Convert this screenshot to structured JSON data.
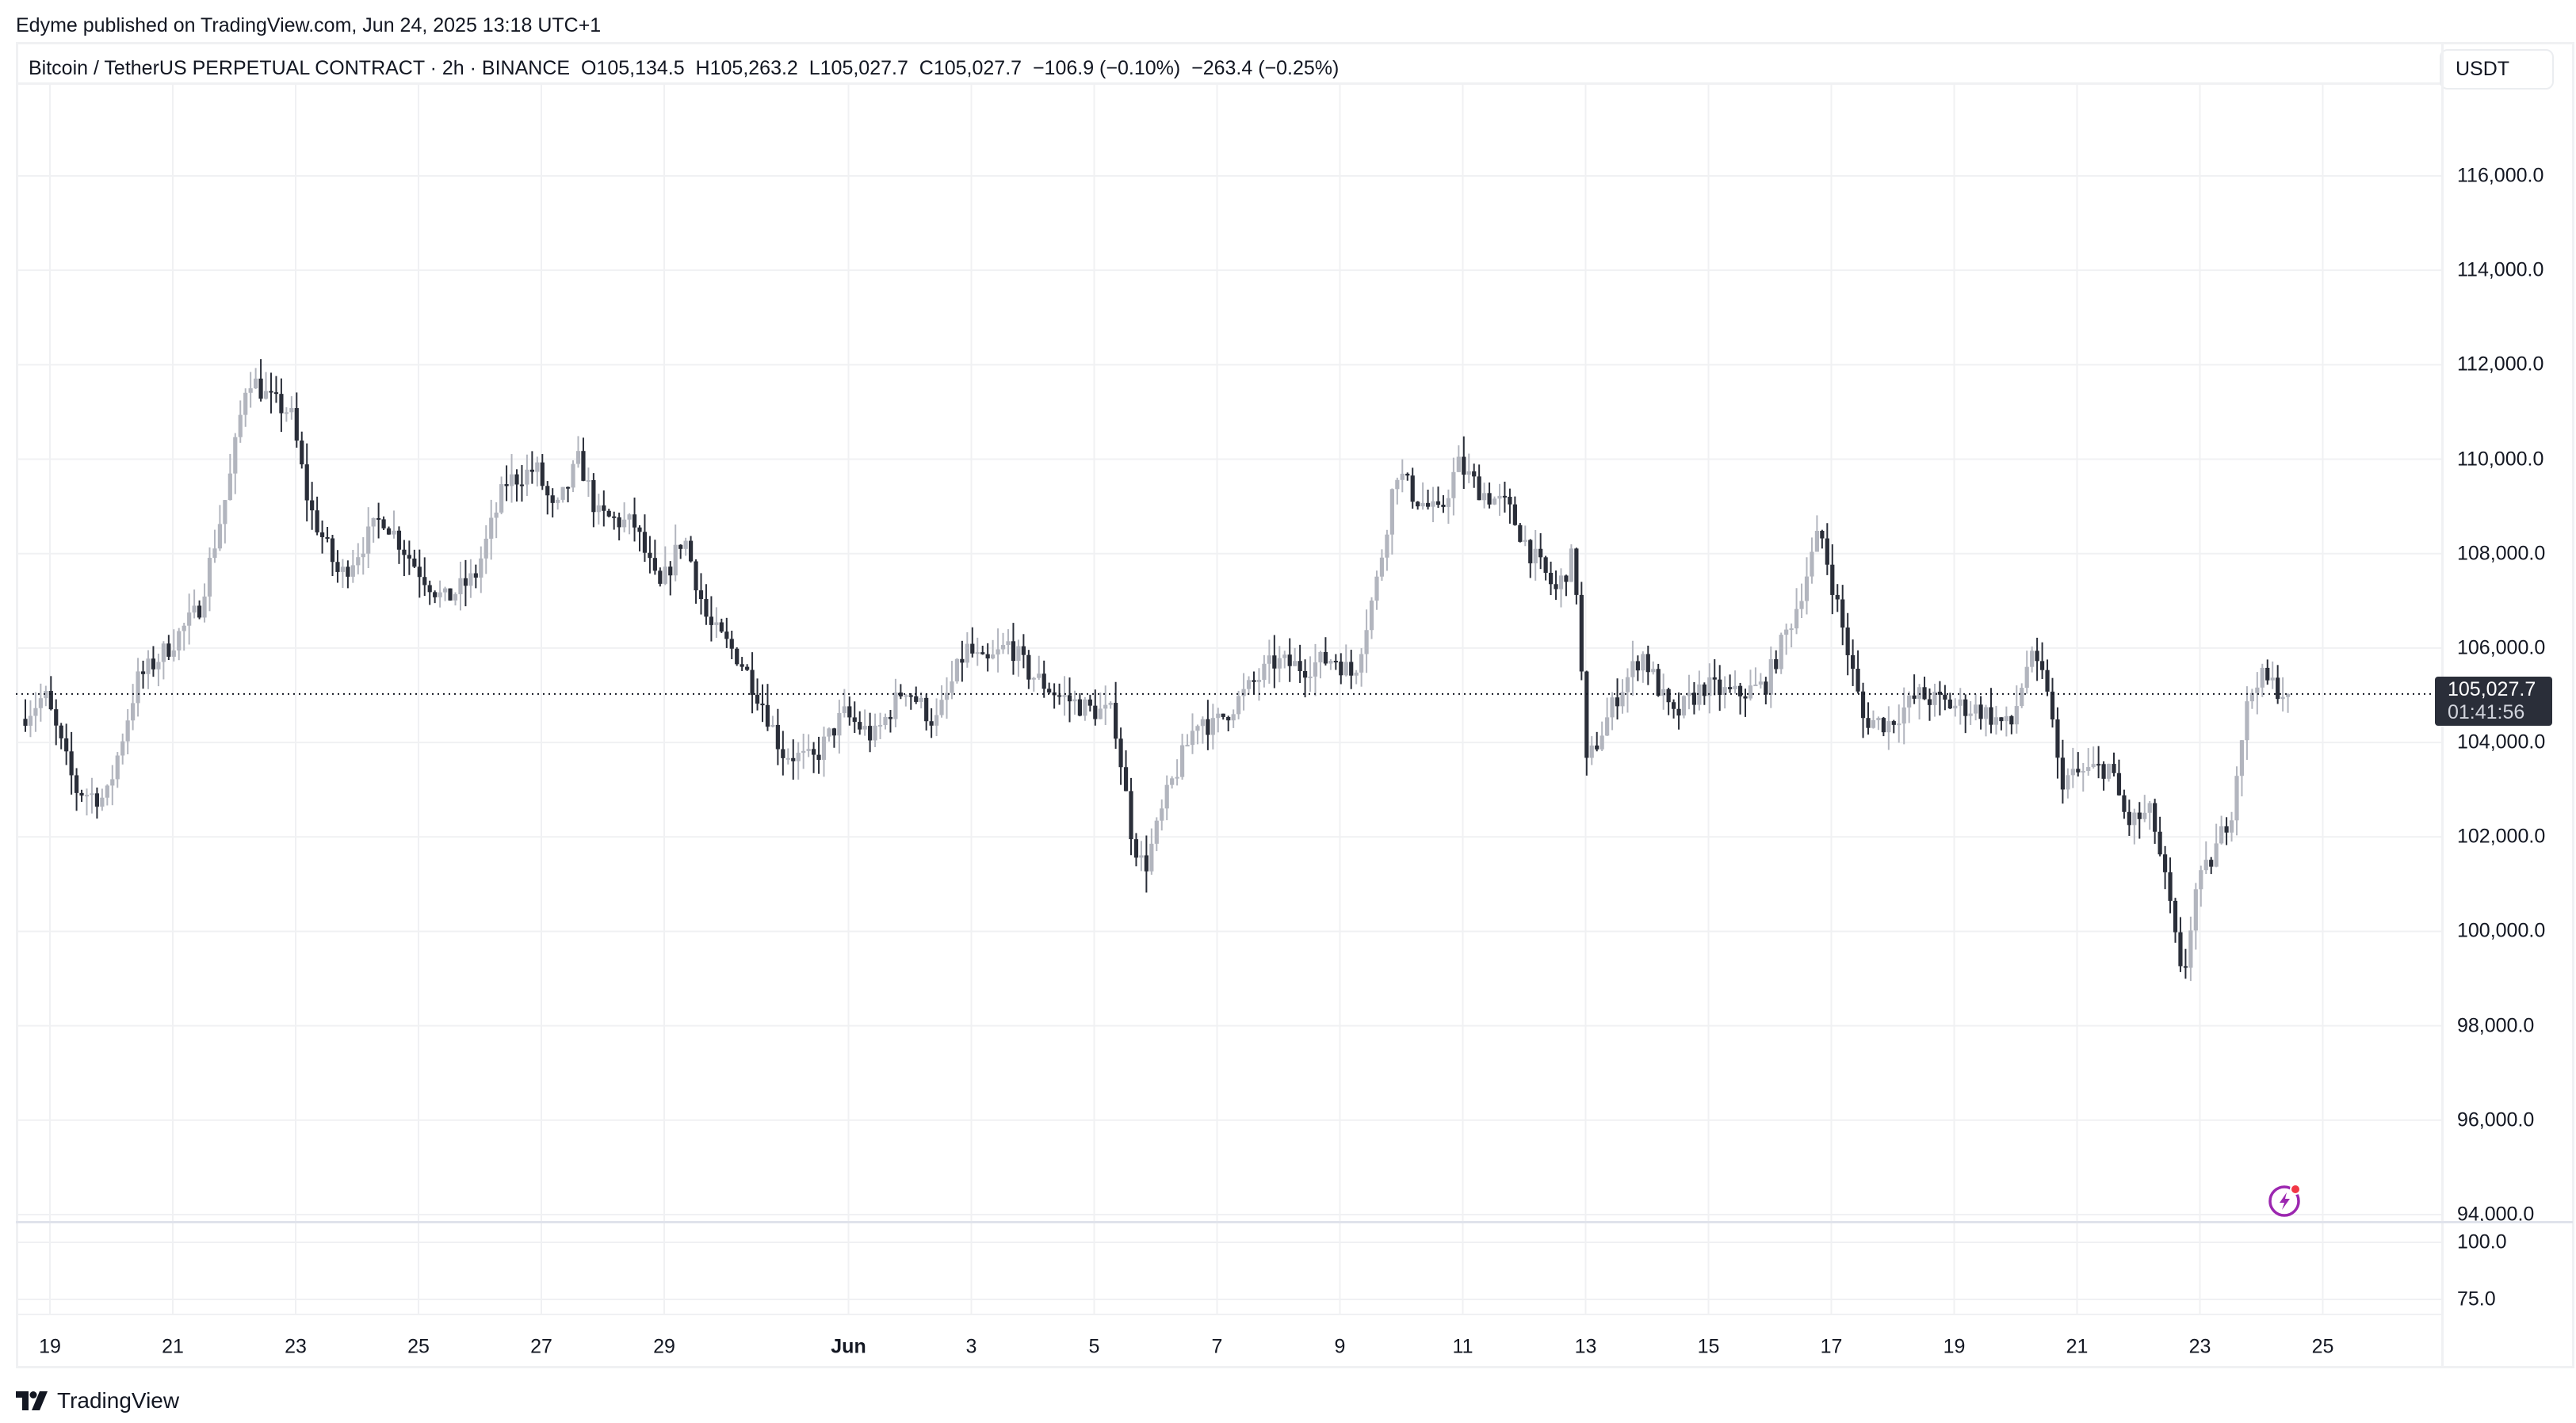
{
  "header": {
    "published": "Edyme published on TradingView.com, Jun 24, 2025 13:18 UTC+1"
  },
  "legend": {
    "symbol": "Bitcoin / TetherUS PERPETUAL CONTRACT · 2h · BINANCE",
    "open": "O105,134.5",
    "high": "H105,263.2",
    "low": "L105,027.7",
    "close": "C105,027.7",
    "change": "−106.9 (−0.10%)",
    "change2": "−263.4 (−0.25%)"
  },
  "currency_button": "USDT",
  "price_tag": {
    "price": "105,027.7",
    "countdown": "01:41:56",
    "color": "#2a2e39"
  },
  "footer": {
    "brand": "TradingView"
  },
  "colors": {
    "up_candle": "#b2b5be",
    "down_candle": "#2a2e39",
    "grid": "#f0f1f3",
    "alert_icon": "#9c27b0",
    "alert_dot": "#f23645"
  },
  "chart_data": {
    "type": "candlestick",
    "title": "Bitcoin / TetherUS PERPETUAL CONTRACT · 2h · BINANCE",
    "interval": "2h",
    "xlabel": "",
    "ylabel": "USDT",
    "ylim": [
      94000,
      117500
    ],
    "grid": true,
    "last_price": 105027.7,
    "ohlc_last": {
      "open": 105134.5,
      "high": 105263.2,
      "low": 105027.7,
      "close": 105027.7
    },
    "x_tick_labels": [
      "19",
      "21",
      "23",
      "25",
      "27",
      "29",
      "Jun",
      "3",
      "5",
      "7",
      "9",
      "11",
      "13",
      "15",
      "17",
      "19",
      "21",
      "23",
      "25"
    ],
    "y_tick_labels": [
      "116,000.0",
      "114,000.0",
      "112,000.0",
      "110,000.0",
      "108,000.0",
      "106,000.0",
      "104,000.0",
      "102,000.0",
      "100,000.0",
      "98,000.0",
      "96,000.0",
      "94,000.0"
    ],
    "y_ticks": [
      116000,
      114000,
      112000,
      110000,
      108000,
      106000,
      104000,
      102000,
      100000,
      98000,
      96000,
      94000
    ],
    "lower_pane_tick_labels": [
      "100.0",
      "75.0"
    ],
    "price_path_by_day": [
      {
        "day": "May 18.6",
        "price": 104500
      },
      {
        "day": "May 19",
        "price": 105000
      },
      {
        "day": "May 19.5",
        "price": 103000
      },
      {
        "day": "May 20",
        "price": 102800
      },
      {
        "day": "May 20.5",
        "price": 105300
      },
      {
        "day": "May 21",
        "price": 106000
      },
      {
        "day": "May 21.5",
        "price": 106800
      },
      {
        "day": "May 22",
        "price": 109500
      },
      {
        "day": "May 22.3",
        "price": 111800
      },
      {
        "day": "May 22.7",
        "price": 111200
      },
      {
        "day": "May 23",
        "price": 111000
      },
      {
        "day": "May 23.3",
        "price": 109000
      },
      {
        "day": "May 23.8",
        "price": 107500
      },
      {
        "day": "May 24.5",
        "price": 108800
      },
      {
        "day": "May 25",
        "price": 107800
      },
      {
        "day": "May 25.5",
        "price": 107000
      },
      {
        "day": "May 26",
        "price": 107500
      },
      {
        "day": "May 26.5",
        "price": 109500
      },
      {
        "day": "May 27",
        "price": 109800
      },
      {
        "day": "May 27.3",
        "price": 108800
      },
      {
        "day": "May 27.7",
        "price": 110000
      },
      {
        "day": "May 28",
        "price": 108800
      },
      {
        "day": "May 28.6",
        "price": 108600
      },
      {
        "day": "May 29",
        "price": 107200
      },
      {
        "day": "May 29.4",
        "price": 108400
      },
      {
        "day": "May 29.8",
        "price": 106500
      },
      {
        "day": "May 30.3",
        "price": 105800
      },
      {
        "day": "May 30.7",
        "price": 104800
      },
      {
        "day": "May 31",
        "price": 103800
      },
      {
        "day": "May 31.5",
        "price": 103600
      },
      {
        "day": "Jun 1",
        "price": 104600
      },
      {
        "day": "Jun 1.5",
        "price": 104100
      },
      {
        "day": "Jun 2",
        "price": 105200
      },
      {
        "day": "Jun 2.5",
        "price": 104400
      },
      {
        "day": "Jun 3",
        "price": 106000
      },
      {
        "day": "Jun 3.3",
        "price": 105600
      },
      {
        "day": "Jun 3.7",
        "price": 106100
      },
      {
        "day": "Jun 4",
        "price": 105500
      },
      {
        "day": "Jun 4.5",
        "price": 105000
      },
      {
        "day": "Jun 5",
        "price": 104700
      },
      {
        "day": "Jun 5.4",
        "price": 104600
      },
      {
        "day": "Jun 5.7",
        "price": 102000
      },
      {
        "day": "Jun 5.9",
        "price": 101300
      },
      {
        "day": "Jun 6.3",
        "price": 103000
      },
      {
        "day": "Jun 6.8",
        "price": 104600
      },
      {
        "day": "Jun 7",
        "price": 104300
      },
      {
        "day": "Jun 7.5",
        "price": 105000
      },
      {
        "day": "Jun 8",
        "price": 105700
      },
      {
        "day": "Jun 8.5",
        "price": 105600
      },
      {
        "day": "Jun 9",
        "price": 105800
      },
      {
        "day": "Jun 9.3",
        "price": 105400
      },
      {
        "day": "Jun 9.7",
        "price": 107500
      },
      {
        "day": "Jun 10",
        "price": 109800
      },
      {
        "day": "Jun 10.3",
        "price": 109200
      },
      {
        "day": "Jun 10.7",
        "price": 108800
      },
      {
        "day": "Jun 11",
        "price": 109900
      },
      {
        "day": "Jun 11.4",
        "price": 109300
      },
      {
        "day": "Jun 11.8",
        "price": 109000
      },
      {
        "day": "Jun 12.2",
        "price": 108000
      },
      {
        "day": "Jun 12.6",
        "price": 107200
      },
      {
        "day": "Jun 12.9",
        "price": 108000
      },
      {
        "day": "Jun 13",
        "price": 105800
      },
      {
        "day": "Jun 13.1",
        "price": 103500
      },
      {
        "day": "Jun 13.6",
        "price": 105000
      },
      {
        "day": "Jun 14",
        "price": 105900
      },
      {
        "day": "Jun 14.5",
        "price": 104500
      },
      {
        "day": "Jun 15",
        "price": 105200
      },
      {
        "day": "Jun 15.5",
        "price": 105000
      },
      {
        "day": "Jun 16",
        "price": 105200
      },
      {
        "day": "Jun 16.5",
        "price": 106800
      },
      {
        "day": "Jun 16.9",
        "price": 108500
      },
      {
        "day": "Jun 17.2",
        "price": 106800
      },
      {
        "day": "Jun 17.6",
        "price": 104500
      },
      {
        "day": "Jun 18",
        "price": 104400
      },
      {
        "day": "Jun 18.5",
        "price": 105000
      },
      {
        "day": "Jun 19",
        "price": 104800
      },
      {
        "day": "Jun 19.5",
        "price": 104700
      },
      {
        "day": "Jun 20",
        "price": 104300
      },
      {
        "day": "Jun 20.3",
        "price": 105800
      },
      {
        "day": "Jun 20.6",
        "price": 105200
      },
      {
        "day": "Jun 20.8",
        "price": 103200
      },
      {
        "day": "Jun 21.3",
        "price": 103400
      },
      {
        "day": "Jun 21.6",
        "price": 103500
      },
      {
        "day": "Jun 21.9",
        "price": 102300
      },
      {
        "day": "Jun 22.3",
        "price": 102500
      },
      {
        "day": "Jun 22.6",
        "price": 100500
      },
      {
        "day": "Jun 22.8",
        "price": 98800
      },
      {
        "day": "Jun 23",
        "price": 100800
      },
      {
        "day": "Jun 23.3",
        "price": 101600
      },
      {
        "day": "Jun 23.6",
        "price": 102600
      },
      {
        "day": "Jun 23.8",
        "price": 104500
      },
      {
        "day": "Jun 24",
        "price": 105400
      },
      {
        "day": "Jun 24.3",
        "price": 105200
      },
      {
        "day": "Jun 24.5",
        "price": 105027.7
      }
    ]
  }
}
